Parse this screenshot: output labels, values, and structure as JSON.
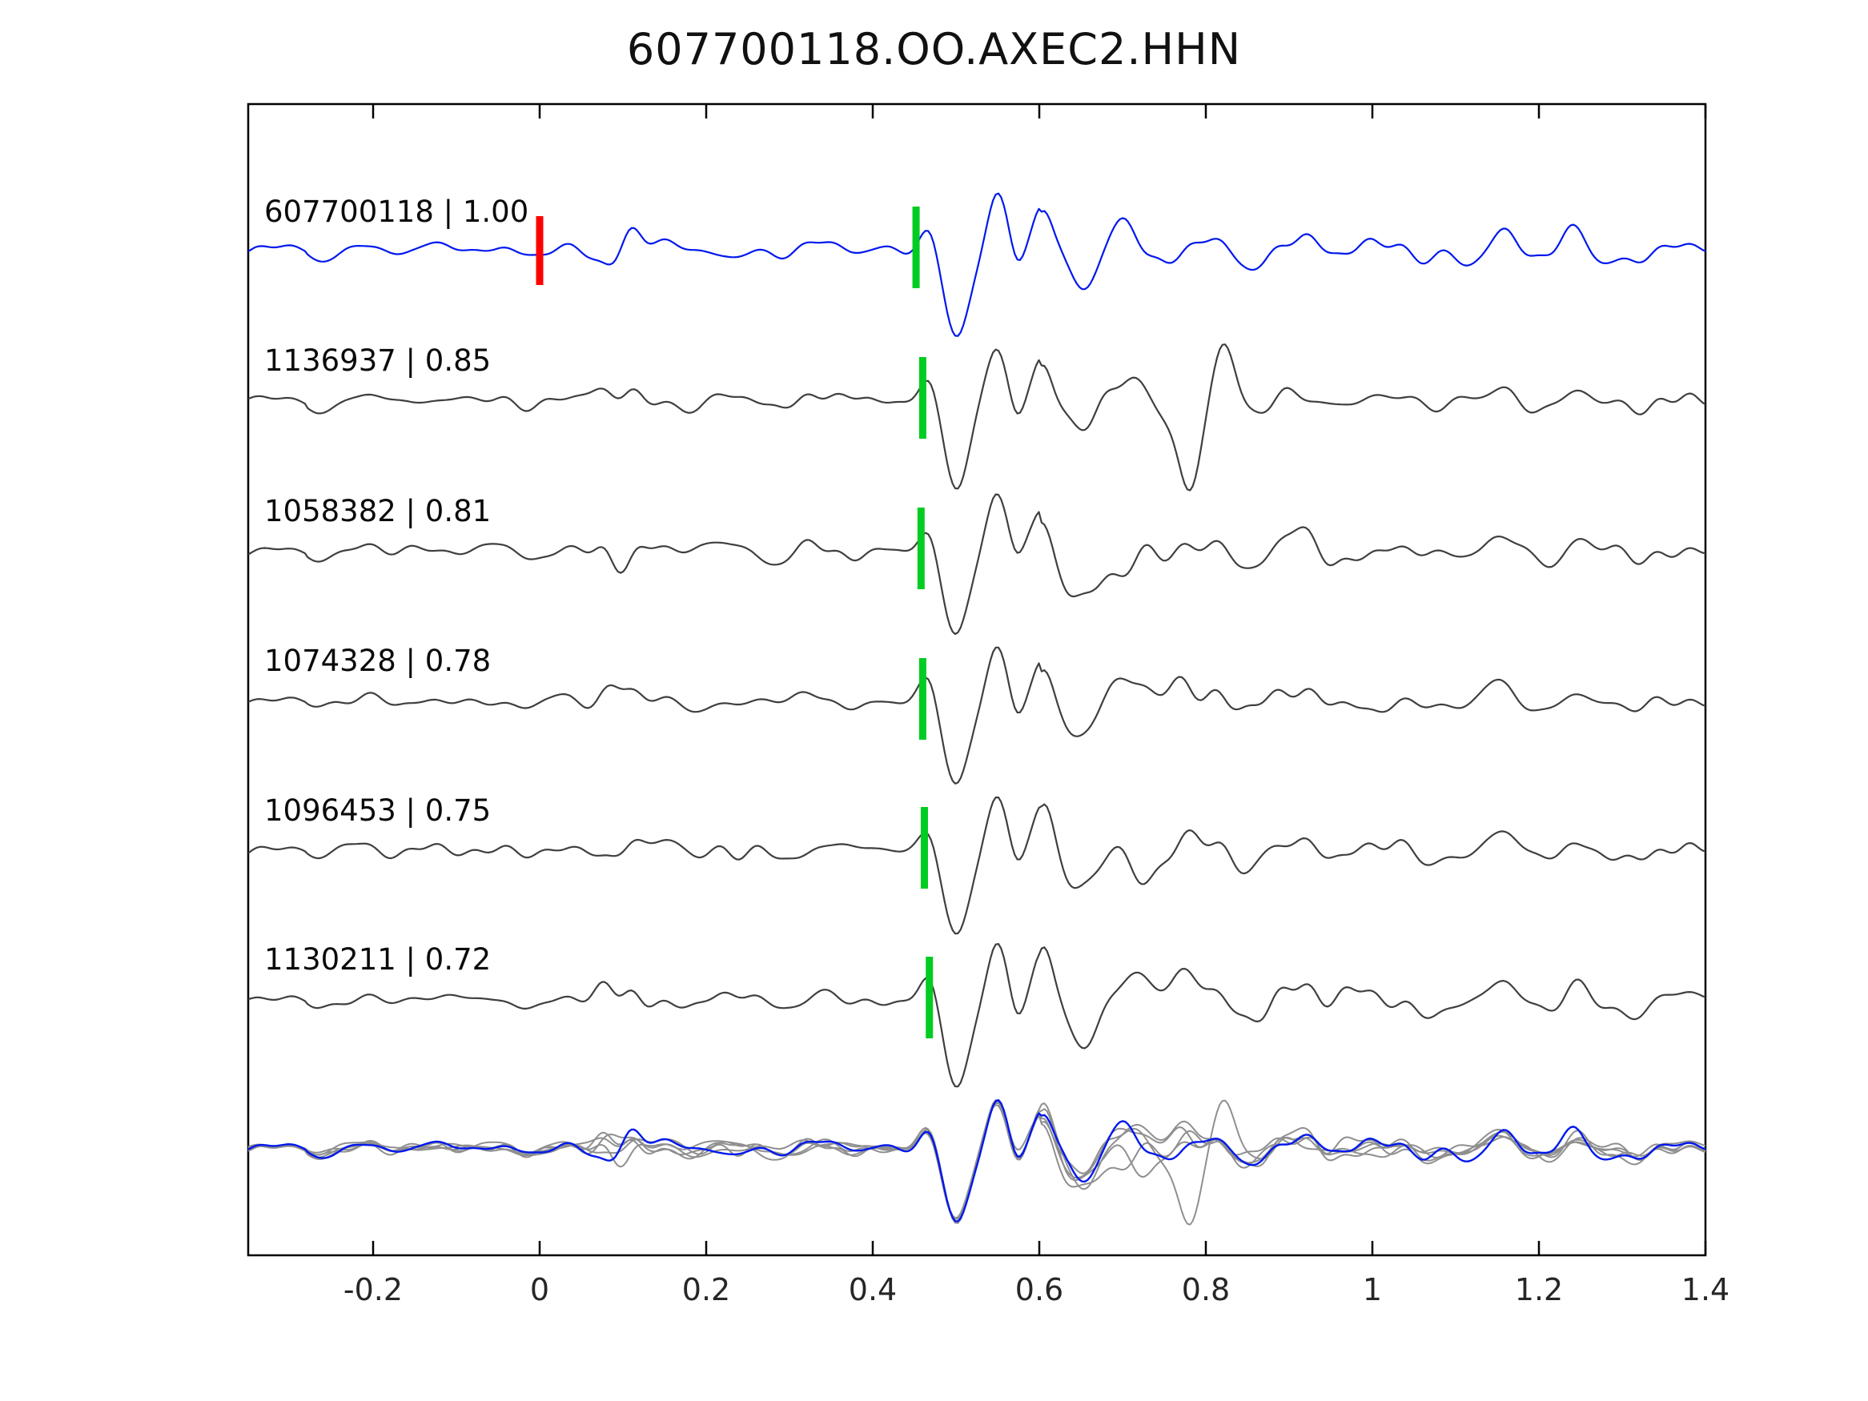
{
  "chart_data": {
    "type": "line",
    "title": "607700118.OO.AXEC2.HHN",
    "xlabel": "",
    "ylabel": "",
    "xlim": [
      -0.35,
      1.4
    ],
    "x_ticks": [
      "-0.2",
      "0",
      "0.2",
      "0.4",
      "0.6",
      "0.8",
      "1",
      "1.2",
      "1.4"
    ],
    "x_tick_values": [
      -0.2,
      0,
      0.2,
      0.4,
      0.6,
      0.8,
      1.0,
      1.2,
      1.4
    ],
    "grid": false,
    "legend": false,
    "colors": {
      "reference": "#0018ee",
      "match": "#3f3f3f",
      "overlay_members": "#8f8f8f",
      "pick_reference": "#ff0000",
      "pick_match": "#00cc22",
      "axes": "#000000",
      "background": "#ffffff"
    },
    "reference_trace": {
      "id": "607700118",
      "label": "607700118 | 1.00",
      "correlation": 1.0,
      "pick_marker_x": 0.0,
      "alignment_marker_x": 0.452,
      "extra_pulses": []
    },
    "matched_traces": [
      {
        "id": "1136937",
        "label": "1136937 | 0.85",
        "correlation": 0.85,
        "alignment_marker_x": 0.46,
        "extra_pulses": [
          {
            "x": 0.78,
            "amp": -120,
            "w": 0.018
          },
          {
            "x": 0.825,
            "amp": 55,
            "w": 0.02
          }
        ]
      },
      {
        "id": "1058382",
        "label": "1058382 | 0.81",
        "correlation": 0.81,
        "alignment_marker_x": 0.458,
        "extra_pulses": [
          {
            "x": 0.7,
            "amp": -55,
            "w": 0.025
          }
        ]
      },
      {
        "id": "1074328",
        "label": "1074328 | 0.78",
        "correlation": 0.78,
        "alignment_marker_x": 0.46,
        "extra_pulses": [
          {
            "x": 0.76,
            "amp": 30,
            "w": 0.03
          }
        ]
      },
      {
        "id": "1096453",
        "label": "1096453 | 0.75",
        "correlation": 0.75,
        "alignment_marker_x": 0.462,
        "extra_pulses": [
          {
            "x": 0.72,
            "amp": -45,
            "w": 0.025
          }
        ]
      },
      {
        "id": "1130211",
        "label": "1130211 | 0.72",
        "correlation": 0.72,
        "alignment_marker_x": 0.468,
        "extra_pulses": [
          {
            "x": 0.78,
            "amp": 25,
            "w": 0.04
          }
        ]
      }
    ],
    "event_shape": {
      "precursor_peak_x": 0.468,
      "main_trough_x": 0.5,
      "peaks_x": [
        0.549,
        0.602
      ],
      "post_trough_x": 0.652
    },
    "overlay": {
      "description": "All matched traces (gray) overlaid with reference trace (blue)"
    }
  }
}
